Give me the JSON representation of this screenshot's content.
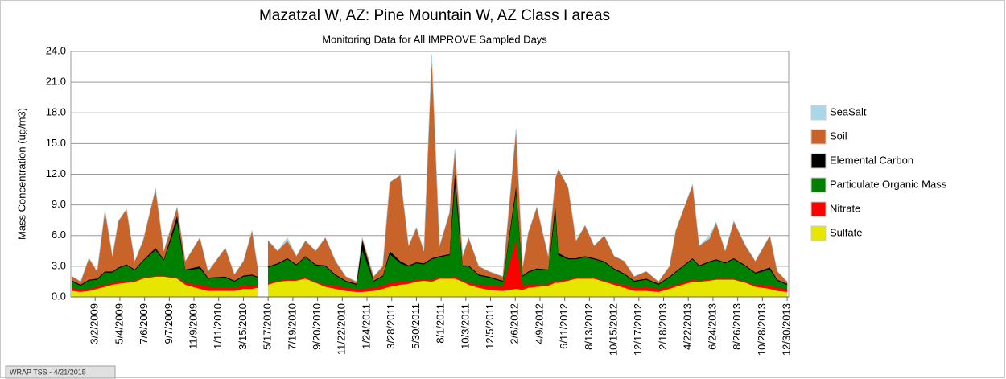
{
  "chart_data": {
    "type": "stacked_area",
    "title": "Mazatzal W, AZ: Pine Mountain W, AZ Class I areas",
    "subtitle": "Monitoring Data for All IMPROVE Sampled Days",
    "y_label": "Mass Concentration (ug/m3)",
    "footer": "WRAP TSS - 4/21/2015",
    "xlim": [
      "12/30/2008",
      "1/3/2014"
    ],
    "xticks": [
      "3/2/2009",
      "5/4/2009",
      "7/6/2009",
      "9/7/2009",
      "11/9/2009",
      "1/11/2010",
      "3/15/2010",
      "5/17/2010",
      "7/19/2010",
      "9/20/2010",
      "11/22/2010",
      "1/24/2011",
      "3/28/2011",
      "5/30/2011",
      "8/1/2011",
      "10/3/2011",
      "12/5/2011",
      "2/6/2012",
      "4/9/2012",
      "6/11/2012",
      "8/13/2012",
      "10/15/2012",
      "12/17/2012",
      "2/18/2013",
      "4/22/2013",
      "6/24/2013",
      "8/26/2013",
      "10/28/2013",
      "12/30/2013"
    ],
    "ylim": [
      0,
      24
    ],
    "yticks": [
      {
        "value": 0,
        "label": "0.0"
      },
      {
        "value": 3,
        "label": "3.0"
      },
      {
        "value": 6,
        "label": "6.0"
      },
      {
        "value": 9,
        "label": "9.0"
      },
      {
        "value": 12,
        "label": "12.0"
      },
      {
        "value": 15,
        "label": "15.0"
      },
      {
        "value": 18,
        "label": "18.0"
      },
      {
        "value": 21,
        "label": "21.0"
      },
      {
        "value": 24,
        "label": "24.0"
      }
    ],
    "grid": true,
    "x": [
      "1/3/2009",
      "1/24/2009",
      "2/14/2009",
      "3/7/2009",
      "3/27/2009",
      "4/15/2009",
      "4/30/2009",
      "5/21/2009",
      "6/11/2009",
      "7/2/2009",
      "8/3/2009",
      "8/24/2009",
      "9/27/2009",
      "10/18/2009",
      "11/24/2009",
      "12/15/2009",
      "1/28/2010",
      "2/20/2010",
      "3/15/2010",
      "4/6/2010",
      "4/20/2010",
      "5/5/2010",
      "5/17/2010",
      "6/10/2010",
      "7/5/2010",
      "7/28/2010",
      "8/20/2010",
      "9/15/2010",
      "10/10/2010",
      "11/5/2010",
      "12/1/2010",
      "12/28/2010",
      "1/12/2011",
      "2/10/2011",
      "3/5/2011",
      "3/23/2011",
      "4/19/2011",
      "5/10/2011",
      "5/30/2011",
      "6/18/2011",
      "7/8/2011",
      "7/28/2011",
      "8/22/2011",
      "9/5/2011",
      "9/25/2011",
      "10/10/2011",
      "11/5/2011",
      "12/1/2011",
      "1/5/2012",
      "2/8/2012",
      "2/25/2012",
      "3/10/2012",
      "4/1/2012",
      "4/30/2012",
      "5/18/2012",
      "5/26/2012",
      "6/20/2012",
      "7/10/2012",
      "8/2/2012",
      "8/25/2012",
      "9/20/2012",
      "10/15/2012",
      "11/10/2012",
      "12/5/2012",
      "1/5/2013",
      "2/5/2013",
      "3/5/2013",
      "3/21/2013",
      "5/3/2013",
      "5/20/2013",
      "6/15/2013",
      "7/2/2013",
      "7/25/2013",
      "8/16/2013",
      "9/15/2013",
      "10/10/2013",
      "11/16/2013",
      "12/5/2013",
      "12/30/2013"
    ],
    "series": [
      {
        "name": "Sulfate",
        "color": "#e6e600",
        "values": [
          0.6,
          0.5,
          0.6,
          0.8,
          1.0,
          1.2,
          1.3,
          1.4,
          1.5,
          1.8,
          2.0,
          2.0,
          1.8,
          1.2,
          0.8,
          0.6,
          0.6,
          0.6,
          0.8,
          0.8,
          0.9,
          null,
          1.2,
          1.5,
          1.6,
          1.6,
          1.8,
          1.4,
          1.0,
          0.8,
          0.6,
          0.5,
          0.5,
          0.6,
          0.8,
          1.0,
          1.2,
          1.3,
          1.5,
          1.6,
          1.5,
          1.8,
          1.8,
          1.8,
          1.5,
          1.2,
          0.9,
          0.7,
          0.6,
          0.8,
          0.7,
          0.9,
          1.0,
          1.1,
          1.4,
          1.4,
          1.6,
          1.8,
          1.8,
          1.8,
          1.5,
          1.2,
          0.9,
          0.6,
          0.6,
          0.5,
          0.8,
          1.0,
          1.5,
          1.5,
          1.6,
          1.7,
          1.7,
          1.7,
          1.4,
          1.0,
          0.8,
          0.6,
          0.5
        ]
      },
      {
        "name": "Nitrate",
        "color": "#ff0000",
        "values": [
          0.3,
          0.2,
          0.2,
          0.2,
          0.2,
          0.2,
          0.2,
          0.2,
          0.1,
          0.1,
          0.1,
          0.1,
          0.1,
          0.2,
          0.4,
          0.4,
          0.3,
          0.3,
          0.3,
          0.3,
          0.2,
          null,
          0.2,
          0.1,
          0.1,
          0.1,
          0.1,
          0.1,
          0.2,
          0.3,
          0.3,
          0.3,
          0.3,
          0.3,
          0.3,
          0.4,
          0.3,
          0.2,
          0.2,
          0.1,
          0.2,
          0.1,
          0.1,
          0.2,
          0.1,
          0.2,
          0.3,
          0.4,
          0.4,
          4.8,
          0.4,
          0.3,
          0.2,
          0.2,
          0.2,
          0.2,
          0.1,
          0.1,
          0.1,
          0.1,
          0.1,
          0.2,
          0.3,
          0.3,
          0.4,
          0.3,
          0.2,
          0.2,
          0.2,
          0.1,
          0.1,
          0.1,
          0.1,
          0.1,
          0.1,
          0.2,
          0.3,
          0.3,
          0.3
        ]
      },
      {
        "name": "Particulate Organic Mass",
        "color": "#008000",
        "values": [
          0.6,
          0.4,
          0.8,
          0.7,
          1.2,
          1.0,
          1.3,
          1.5,
          1.0,
          1.6,
          2.5,
          1.5,
          5.5,
          1.2,
          1.6,
          0.8,
          1.0,
          0.6,
          0.9,
          1.0,
          0.8,
          null,
          1.5,
          1.6,
          2.0,
          1.4,
          2.0,
          1.6,
          1.8,
          1.0,
          0.6,
          0.4,
          3.8,
          0.6,
          0.9,
          2.8,
          1.8,
          1.5,
          1.6,
          1.5,
          2.0,
          2.0,
          2.2,
          9.0,
          1.4,
          1.6,
          0.9,
          0.8,
          0.5,
          4.8,
          0.9,
          1.2,
          1.5,
          1.3,
          6.8,
          2.5,
          2.0,
          1.8,
          2.0,
          1.8,
          1.8,
          1.3,
          1.0,
          0.6,
          0.7,
          0.4,
          0.9,
          1.2,
          2.0,
          1.4,
          1.7,
          1.8,
          1.5,
          1.9,
          1.5,
          1.1,
          1.6,
          0.7,
          0.4
        ]
      },
      {
        "name": "Elemental Carbon",
        "color": "#000000",
        "values": [
          0.1,
          0.1,
          0.1,
          0.1,
          0.1,
          0.1,
          0.1,
          0.1,
          0.1,
          0.1,
          0.2,
          0.1,
          0.6,
          0.1,
          0.2,
          0.1,
          0.1,
          0.1,
          0.1,
          0.1,
          0.1,
          null,
          0.1,
          0.1,
          0.1,
          0.1,
          0.1,
          0.1,
          0.1,
          0.1,
          0.1,
          0.1,
          1.0,
          0.1,
          0.1,
          0.3,
          0.2,
          0.1,
          0.1,
          0.1,
          0.1,
          0.1,
          0.1,
          1.3,
          0.1,
          0.1,
          0.1,
          0.1,
          0.1,
          0.5,
          0.1,
          0.1,
          0.1,
          0.1,
          0.8,
          0.2,
          0.1,
          0.1,
          0.1,
          0.1,
          0.1,
          0.1,
          0.1,
          0.1,
          0.1,
          0.1,
          0.1,
          0.1,
          0.1,
          0.1,
          0.1,
          0.1,
          0.1,
          0.1,
          0.1,
          0.1,
          0.2,
          0.1,
          0.1
        ]
      },
      {
        "name": "Soil",
        "color": "#c8632a",
        "values": [
          0.4,
          0.3,
          2.1,
          0.7,
          6.0,
          1.5,
          4.5,
          5.4,
          0.8,
          1.9,
          5.8,
          0.8,
          0.8,
          0.8,
          2.8,
          0.6,
          2.8,
          0.6,
          1.4,
          4.3,
          1.0,
          null,
          2.5,
          1.2,
          1.7,
          0.8,
          1.5,
          1.3,
          2.7,
          1.3,
          0.4,
          0.2,
          0.2,
          0.4,
          0.9,
          6.7,
          8.4,
          1.9,
          3.4,
          1.2,
          19.8,
          1.0,
          4.0,
          2.1,
          0.9,
          2.7,
          0.8,
          0.5,
          0.4,
          5.5,
          0.9,
          3.8,
          6.0,
          1.3,
          2.4,
          8.2,
          6.9,
          1.7,
          3.0,
          1.2,
          2.5,
          1.2,
          1.2,
          0.4,
          0.7,
          0.2,
          1.0,
          4.0,
          7.2,
          1.9,
          2.2,
          3.6,
          1.1,
          3.6,
          1.9,
          1.1,
          3.1,
          0.8,
          0.2
        ]
      },
      {
        "name": "SeaSalt",
        "color": "#a8d8e8",
        "values": [
          0.02,
          0.02,
          0.02,
          0.02,
          0.02,
          0.02,
          0.02,
          0.02,
          0.02,
          0.02,
          0.02,
          0.02,
          0.02,
          0.02,
          0.02,
          0.02,
          0.02,
          0.02,
          0.02,
          0.02,
          0.02,
          null,
          0.05,
          0.02,
          0.3,
          0.02,
          0.02,
          0.02,
          0.02,
          0.02,
          0.02,
          0.02,
          0.02,
          0.02,
          0.02,
          0.02,
          0.02,
          0.02,
          0.02,
          0.02,
          0.1,
          0.02,
          0.02,
          0.1,
          0.02,
          0.02,
          0.02,
          0.02,
          0.02,
          0.1,
          0.02,
          0.02,
          0.02,
          0.02,
          0.02,
          0.02,
          0.02,
          0.02,
          0.02,
          0.02,
          0.02,
          0.02,
          0.02,
          0.02,
          0.02,
          0.02,
          0.02,
          0.02,
          0.02,
          0.02,
          0.3,
          0.02,
          0.02,
          0.02,
          0.02,
          0.02,
          0.02,
          0.02,
          0.02
        ]
      }
    ]
  }
}
